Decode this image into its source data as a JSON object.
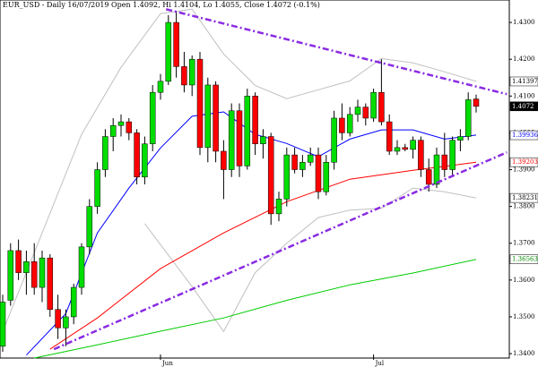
{
  "chart_data": {
    "type": "candlestick",
    "title": "EUR_USD - Daily 16/07/2019 Open 1.4092, Hi 1.4104, Lo 1.4055, Close 1.4072 (-0.1%)",
    "up_color": "#00dd00",
    "down_color": "#ff0000",
    "open": [
      1.342,
      1.3545,
      1.368,
      1.362,
      1.365,
      1.358,
      1.366,
      1.352,
      1.347,
      1.35,
      1.358,
      1.369,
      1.38,
      1.39,
      1.399,
      1.402,
      1.403,
      1.4,
      1.388,
      1.397,
      1.411,
      1.414,
      1.43,
      1.418,
      1.413,
      1.42,
      1.396,
      1.413,
      1.395,
      1.39,
      1.406,
      1.391,
      1.41,
      1.397,
      1.399,
      1.378,
      1.382,
      1.394,
      1.39,
      1.392,
      1.394,
      1.384,
      1.392,
      1.404,
      1.4,
      1.405,
      1.407,
      1.404,
      1.411,
      1.403,
      1.395,
      1.396,
      1.3955,
      1.398,
      1.39,
      1.386,
      1.394,
      1.39,
      1.398,
      1.399,
      1.4092
    ],
    "high": [
      1.356,
      1.37,
      1.371,
      1.368,
      1.37,
      1.368,
      1.367,
      1.356,
      1.352,
      1.359,
      1.37,
      1.382,
      1.392,
      1.401,
      1.404,
      1.405,
      1.404,
      1.401,
      1.399,
      1.413,
      1.416,
      1.432,
      1.433,
      1.422,
      1.421,
      1.422,
      1.415,
      1.414,
      1.398,
      1.408,
      1.408,
      1.412,
      1.411,
      1.401,
      1.4,
      1.384,
      1.396,
      1.396,
      1.394,
      1.396,
      1.396,
      1.394,
      1.406,
      1.408,
      1.407,
      1.409,
      1.408,
      1.412,
      1.42,
      1.405,
      1.398,
      1.397,
      1.399,
      1.399,
      1.393,
      1.396,
      1.4,
      1.399,
      1.401,
      1.411,
      1.4104
    ],
    "low": [
      1.3405,
      1.353,
      1.36,
      1.356,
      1.356,
      1.354,
      1.35,
      1.344,
      1.342,
      1.348,
      1.356,
      1.367,
      1.378,
      1.388,
      1.395,
      1.399,
      1.398,
      1.386,
      1.386,
      1.395,
      1.409,
      1.413,
      1.415,
      1.411,
      1.41,
      1.394,
      1.392,
      1.392,
      1.382,
      1.388,
      1.388,
      1.39,
      1.394,
      1.393,
      1.375,
      1.376,
      1.38,
      1.389,
      1.388,
      1.391,
      1.382,
      1.383,
      1.39,
      1.398,
      1.399,
      1.403,
      1.402,
      1.403,
      1.402,
      1.394,
      1.394,
      1.395,
      1.393,
      1.388,
      1.384,
      1.385,
      1.388,
      1.388,
      1.395,
      1.398,
      1.4055
    ],
    "close": [
      1.354,
      1.368,
      1.362,
      1.365,
      1.358,
      1.366,
      1.352,
      1.347,
      1.35,
      1.358,
      1.369,
      1.38,
      1.39,
      1.399,
      1.402,
      1.403,
      1.4,
      1.388,
      1.397,
      1.411,
      1.414,
      1.43,
      1.418,
      1.413,
      1.42,
      1.396,
      1.413,
      1.395,
      1.39,
      1.406,
      1.391,
      1.41,
      1.397,
      1.399,
      1.378,
      1.382,
      1.394,
      1.39,
      1.392,
      1.394,
      1.384,
      1.392,
      1.404,
      1.4,
      1.405,
      1.407,
      1.404,
      1.411,
      1.403,
      1.395,
      1.396,
      1.3955,
      1.398,
      1.39,
      1.386,
      1.394,
      1.39,
      1.398,
      1.399,
      1.409,
      1.4072
    ],
    "overlays": [
      {
        "color": "#c0c0c0",
        "x": [
          0,
          10,
          15,
          20,
          24,
          28,
          32,
          36,
          40,
          44,
          48,
          52,
          56,
          60
        ],
        "values": [
          1.346,
          1.3996,
          1.4178,
          1.4324,
          1.4336,
          1.4214,
          1.4129,
          1.4093,
          1.4117,
          1.4141,
          1.4202,
          1.419,
          1.4166,
          1.414
        ]
      },
      {
        "color": "#c0c0c0",
        "x": [
          18,
          24,
          28,
          32,
          36,
          40,
          44,
          48,
          52,
          56,
          60
        ],
        "values": [
          1.3753,
          1.3582,
          1.346,
          1.362,
          1.37,
          1.377,
          1.379,
          1.3795,
          1.385,
          1.384,
          1.3823
        ]
      },
      {
        "color": "#0000ff",
        "x": [
          3,
          8,
          12,
          16,
          20,
          24,
          28,
          32,
          36,
          40,
          44,
          48,
          52,
          56,
          60
        ],
        "values": [
          1.3396,
          1.3509,
          1.3728,
          1.385,
          1.3959,
          1.4045,
          1.4057,
          1.3996,
          1.3971,
          1.3935,
          1.3983,
          1.4008,
          1.4008,
          1.3983,
          1.3994
        ]
      },
      {
        "color": "#ff0000",
        "x": [
          6,
          12,
          20,
          28,
          36,
          44,
          52,
          60
        ],
        "values": [
          1.3412,
          1.3497,
          1.3631,
          1.3728,
          1.3813,
          1.3874,
          1.3898,
          1.392
        ]
      },
      {
        "color": "#00cc00",
        "x": [
          4,
          12,
          20,
          28,
          36,
          44,
          52,
          60
        ],
        "values": [
          1.3388,
          1.3424,
          1.3461,
          1.3497,
          1.3545,
          1.3587,
          1.3619,
          1.3656
        ]
      }
    ],
    "trendlines": [
      {
        "color": "#8a2be2",
        "x": [
          20.7,
          63.9
        ],
        "values": [
          1.4336,
          1.4105
        ]
      },
      {
        "color": "#8a2be2",
        "x": [
          6.5,
          63.9
        ],
        "values": [
          1.3412,
          1.3947
        ]
      }
    ],
    "price_labels": [
      {
        "value": 1.41397,
        "color": "#000000",
        "background": "#ffffff"
      },
      {
        "value": 1.4072,
        "color": "#ffffff",
        "background": "#000000"
      },
      {
        "value": 1.39936,
        "color": "#0000ff",
        "background": "#ffffff"
      },
      {
        "value": 1.39203,
        "color": "#ff0000",
        "background": "#ffffff"
      },
      {
        "value": 1.38231,
        "color": "#000000",
        "background": "#ffffff"
      },
      {
        "value": 1.36563,
        "color": "#008800",
        "background": "#ffffff"
      }
    ],
    "x_labels": [
      {
        "index": 20,
        "label": "Jun"
      },
      {
        "index": 47,
        "label": "Jul"
      }
    ],
    "ylim": [
      1.3388,
      1.4361
    ],
    "yticks": [
      {
        "value": 1.34,
        "label": "1.3400"
      },
      {
        "value": 1.35,
        "label": "1.3500"
      },
      {
        "value": 1.36,
        "label": "1.3600"
      },
      {
        "value": 1.37,
        "label": "1.3700"
      },
      {
        "value": 1.38,
        "label": "1.3800"
      },
      {
        "value": 1.39,
        "label": "1.3900"
      },
      {
        "value": 1.4,
        "label": "1.4000"
      },
      {
        "value": 1.41,
        "label": "1.4100"
      },
      {
        "value": 1.42,
        "label": "1.4200"
      },
      {
        "value": 1.43,
        "label": "1.4300"
      }
    ]
  }
}
